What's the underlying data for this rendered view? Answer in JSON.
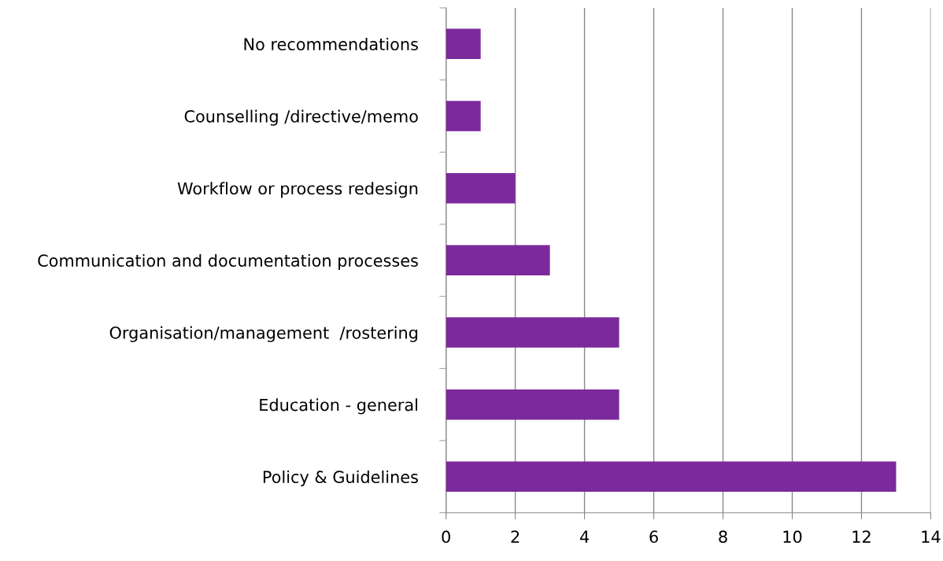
{
  "chart_data": {
    "type": "bar",
    "orientation": "horizontal",
    "categories": [
      "No recommendations",
      "Counselling /directive/memo",
      "Workflow or process redesign",
      "Communication and documentation processes",
      "Organisation/management  /rostering",
      "Education - general",
      "Policy & Guidelines"
    ],
    "values": [
      1,
      1,
      2,
      3,
      5,
      5,
      13
    ],
    "color": "#7b2a9c",
    "xlim": [
      0,
      14
    ],
    "xticks": [
      0,
      2,
      4,
      6,
      8,
      10,
      12,
      14
    ],
    "grid": "x",
    "legend": false
  }
}
